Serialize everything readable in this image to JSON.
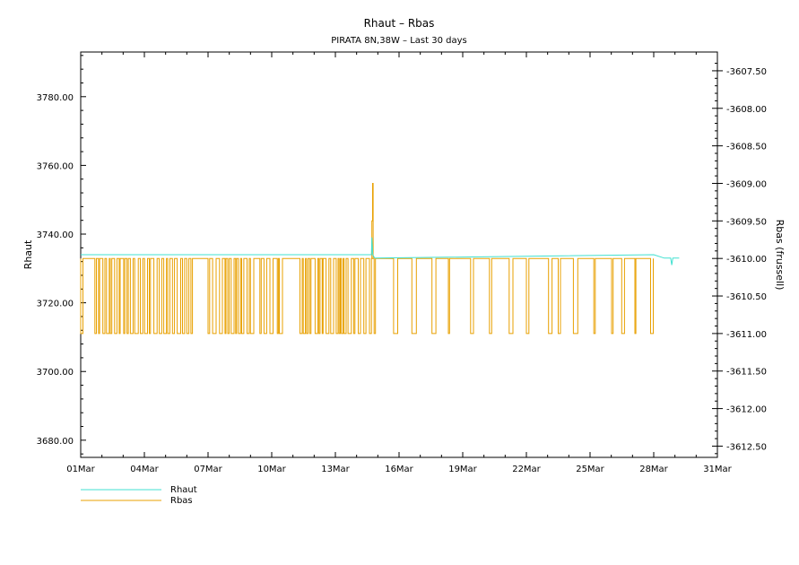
{
  "chart_data": {
    "type": "line",
    "title": "Rhaut – Rbas",
    "subtitle": "PIRATA 8N,38W – Last 30 days",
    "ylabel_left": "Rhaut",
    "ylabel_right": "Rbas (frussell)",
    "x_range_days": [
      0,
      30
    ],
    "x_ticks": [
      {
        "day": 0,
        "label": "01Mar"
      },
      {
        "day": 3,
        "label": "04Mar"
      },
      {
        "day": 6,
        "label": "07Mar"
      },
      {
        "day": 9,
        "label": "10Mar"
      },
      {
        "day": 12,
        "label": "13Mar"
      },
      {
        "day": 15,
        "label": "16Mar"
      },
      {
        "day": 18,
        "label": "19Mar"
      },
      {
        "day": 21,
        "label": "22Mar"
      },
      {
        "day": 24,
        "label": "25Mar"
      },
      {
        "day": 27,
        "label": "28Mar"
      },
      {
        "day": 30,
        "label": "31Mar"
      }
    ],
    "y_left_range": [
      3675,
      3793
    ],
    "y_left_ticks": [
      "3680.00",
      "3700.00",
      "3720.00",
      "3740.00",
      "3760.00",
      "3780.00"
    ],
    "y_right_range": [
      -3612.65,
      -3607.25
    ],
    "y_right_ticks": [
      "-3607.50",
      "-3608.00",
      "-3608.50",
      "-3609.00",
      "-3609.50",
      "-3610.00",
      "-3610.50",
      "-3611.00",
      "-3611.50",
      "-3612.00",
      "-3612.50"
    ],
    "series": [
      {
        "name": "Rhaut",
        "color": "#40e0d0",
        "axis": "left",
        "points": [
          [
            0,
            3734
          ],
          [
            13.7,
            3734
          ],
          [
            13.72,
            3739
          ],
          [
            13.76,
            3734
          ],
          [
            13.85,
            3733
          ],
          [
            27,
            3734
          ],
          [
            27.5,
            3733
          ],
          [
            27.8,
            3733
          ],
          [
            27.85,
            3731
          ],
          [
            27.9,
            3733
          ],
          [
            28.2,
            3733
          ]
        ]
      },
      {
        "name": "Rbas",
        "color": "#e8a000",
        "axis": "right",
        "levels": [
          -3610,
          -3611
        ],
        "dense_start": 0,
        "dense_end": 13.7,
        "sparse_start": 13.7,
        "sparse_end": 26.85,
        "spike": {
          "x": 13.72,
          "peak": -3609.0,
          "secondary": -3609.5
        }
      }
    ],
    "legend": [
      {
        "label": "Rhaut",
        "color": "#40e0d0"
      },
      {
        "label": "Rbas",
        "color": "#e8a000"
      }
    ],
    "legend_position": "bottom-left"
  }
}
